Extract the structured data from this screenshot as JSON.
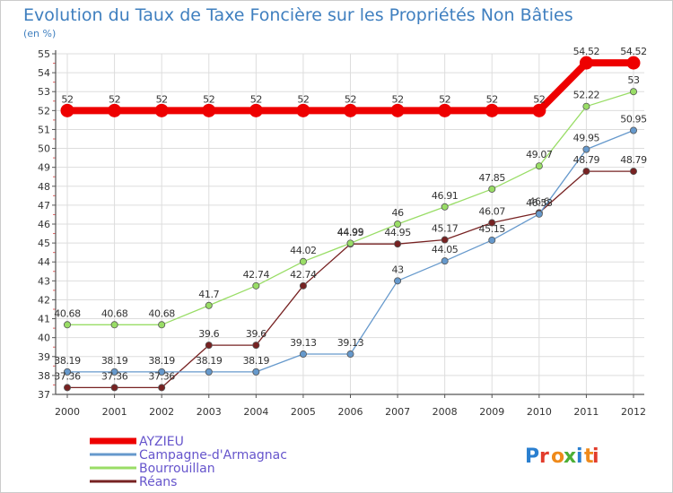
{
  "chart_data": {
    "type": "line",
    "title": "Evolution du Taux de Taxe Foncière sur les Propriétés Non Bâties",
    "subtitle": "(en %)",
    "xlabel": "",
    "ylabel": "",
    "x": [
      "2000",
      "2001",
      "2002",
      "2003",
      "2004",
      "2005",
      "2006",
      "2007",
      "2008",
      "2009",
      "2010",
      "2011",
      "2012"
    ],
    "ylim": [
      37,
      55
    ],
    "yticks": [
      37,
      38,
      39,
      40,
      41,
      42,
      43,
      44,
      45,
      46,
      47,
      48,
      49,
      50,
      51,
      52,
      53,
      54,
      55
    ],
    "grid": true,
    "legend_position": "bottom-left",
    "series": [
      {
        "name": "AYZIEU",
        "color": "#ee0000",
        "values": [
          52,
          52,
          52,
          52,
          52,
          52,
          52,
          52,
          52,
          52,
          52,
          54.52,
          54.52
        ],
        "labels": [
          "52",
          "52",
          "52",
          "52",
          "52",
          "52",
          "52",
          "52",
          "52",
          "52",
          "52",
          "54.52",
          "54.52"
        ]
      },
      {
        "name": "Campagne-d'Armagnac",
        "color": "#6699cc",
        "values": [
          38.19,
          38.19,
          38.19,
          38.19,
          38.19,
          39.13,
          39.13,
          43,
          44.05,
          45.15,
          46.53,
          49.95,
          50.95
        ],
        "labels": [
          "38.19",
          "38.19",
          "38.19",
          "38.19",
          "38.19",
          "39.13",
          "39.13",
          "43",
          "44.05",
          "45.15",
          "46.53",
          "49.95",
          "50.95"
        ]
      },
      {
        "name": "Bourrouillan",
        "color": "#99dd66",
        "values": [
          40.68,
          40.68,
          40.68,
          41.7,
          42.74,
          44.02,
          44.99,
          46,
          46.91,
          47.85,
          49.07,
          52.22,
          53
        ],
        "labels": [
          "40.68",
          "40.68",
          "40.68",
          "41.7",
          "42.74",
          "44.02",
          "44.99",
          "46",
          "46.91",
          "47.85",
          "49.07",
          "52.22",
          "53"
        ]
      },
      {
        "name": "Réans",
        "color": "#772222",
        "values": [
          37.36,
          37.36,
          37.36,
          39.6,
          39.6,
          42.74,
          44.95,
          44.95,
          45.17,
          46.07,
          46.6,
          48.79,
          48.79
        ],
        "labels": [
          "37.36",
          "37.36",
          "37.36",
          "39.6",
          "39.6",
          "42.74",
          "44.95",
          "44.95",
          "45.17",
          "46.07",
          "46.6",
          "48.79",
          "48.79"
        ]
      }
    ],
    "colors": {
      "title": "#3f7fbf",
      "axis": "#555555",
      "grid": "#dddddd",
      "tick_label": "#333333",
      "data_label": "#333333",
      "legend_text": "#6655cc"
    }
  },
  "logo": {
    "text": "Proxiti",
    "letter_colors": [
      "#2a7fd0",
      "#e23c2c",
      "#ef8a1b",
      "#4caf35",
      "#2a7fd0",
      "#ef8a1b",
      "#e23c2c"
    ]
  }
}
